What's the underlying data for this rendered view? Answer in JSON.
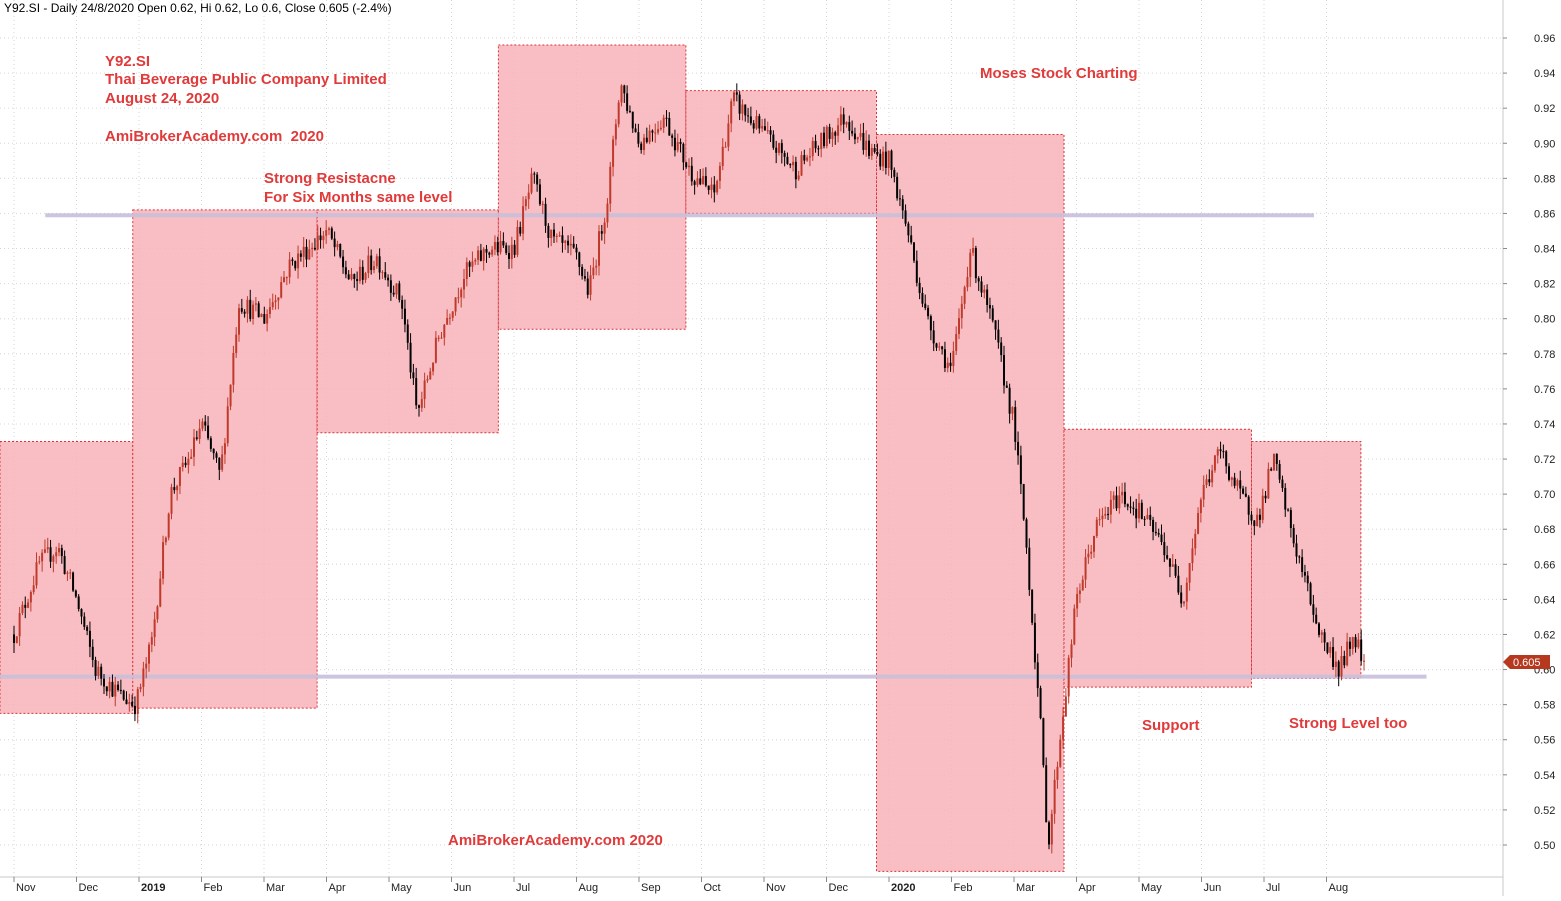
{
  "header": {
    "title": "Y92.SI - Daily 24/8/2020 Open 0.62, Hi 0.62, Lo 0.6, Close 0.605 (-2.4%)"
  },
  "annotations": {
    "ticker": "Y92.SI",
    "company": "Thai Beverage Public Company Limited",
    "date": "August 24, 2020",
    "site_top": "AmiBrokerAcademy.com  2020",
    "resistance_line1": "Strong Resistacne",
    "resistance_line2": "For Six Months same level",
    "moses": "Moses Stock Charting",
    "support": "Support",
    "strong_level": "Strong Level too",
    "site_bottom": "AmiBrokerAcademy.com 2020",
    "last_price": "0.605"
  },
  "colors": {
    "up_candle": "#c0392b",
    "down_candle": "#000000",
    "box_fill": "#f7b3b8",
    "box_border": "#d8343a",
    "level_line": "#c8bfd9",
    "annotation_text": "#e03a3a",
    "price_tag": "#b5381f"
  },
  "chart_data": {
    "type": "candlestick",
    "title": "Y92.SI - Daily 24/8/2020 Open 0.62, Hi 0.62, Lo 0.6, Close 0.605 (-2.4%)",
    "ylim": [
      0.48,
      0.97
    ],
    "y_ticks": [
      "0.96",
      "0.94",
      "0.92",
      "0.90",
      "0.88",
      "0.86",
      "0.84",
      "0.82",
      "0.80",
      "0.78",
      "0.76",
      "0.74",
      "0.72",
      "0.70",
      "0.68",
      "0.66",
      "0.64",
      "0.62",
      "0.60",
      "0.58",
      "0.56",
      "0.54",
      "0.52",
      "0.50"
    ],
    "x_ticks": [
      {
        "label": "Nov",
        "month": 0
      },
      {
        "label": "Dec",
        "month": 1
      },
      {
        "label": "2019",
        "month": 2
      },
      {
        "label": "Feb",
        "month": 3
      },
      {
        "label": "Mar",
        "month": 4
      },
      {
        "label": "Apr",
        "month": 5
      },
      {
        "label": "May",
        "month": 6
      },
      {
        "label": "Jun",
        "month": 7
      },
      {
        "label": "Jul",
        "month": 8
      },
      {
        "label": "Aug",
        "month": 9
      },
      {
        "label": "Sep",
        "month": 10
      },
      {
        "label": "Oct",
        "month": 11
      },
      {
        "label": "Nov",
        "month": 12
      },
      {
        "label": "Dec",
        "month": 13
      },
      {
        "label": "2020",
        "month": 14
      },
      {
        "label": "Feb",
        "month": 15
      },
      {
        "label": "Mar",
        "month": 16
      },
      {
        "label": "Apr",
        "month": 17
      },
      {
        "label": "May",
        "month": 18
      },
      {
        "label": "Jun",
        "month": 19
      },
      {
        "label": "Jul",
        "month": 20
      },
      {
        "label": "Aug",
        "month": 21
      }
    ],
    "grid": true,
    "price_path": [
      {
        "m": 0.0,
        "p": 0.62
      },
      {
        "m": 0.4,
        "p": 0.66
      },
      {
        "m": 0.7,
        "p": 0.67
      },
      {
        "m": 1.0,
        "p": 0.64
      },
      {
        "m": 1.3,
        "p": 0.6
      },
      {
        "m": 1.7,
        "p": 0.585
      },
      {
        "m": 1.95,
        "p": 0.58
      },
      {
        "m": 2.2,
        "p": 0.615
      },
      {
        "m": 2.5,
        "p": 0.7
      },
      {
        "m": 2.8,
        "p": 0.72
      },
      {
        "m": 3.0,
        "p": 0.74
      },
      {
        "m": 3.3,
        "p": 0.71
      },
      {
        "m": 3.6,
        "p": 0.81
      },
      {
        "m": 4.0,
        "p": 0.8
      },
      {
        "m": 4.4,
        "p": 0.83
      },
      {
        "m": 4.7,
        "p": 0.84
      },
      {
        "m": 5.0,
        "p": 0.85
      },
      {
        "m": 5.4,
        "p": 0.82
      },
      {
        "m": 5.8,
        "p": 0.835
      },
      {
        "m": 6.2,
        "p": 0.81
      },
      {
        "m": 6.45,
        "p": 0.745
      },
      {
        "m": 6.8,
        "p": 0.79
      },
      {
        "m": 7.2,
        "p": 0.825
      },
      {
        "m": 7.6,
        "p": 0.84
      },
      {
        "m": 8.0,
        "p": 0.84
      },
      {
        "m": 8.3,
        "p": 0.88
      },
      {
        "m": 8.6,
        "p": 0.845
      },
      {
        "m": 9.0,
        "p": 0.835
      },
      {
        "m": 9.2,
        "p": 0.815
      },
      {
        "m": 9.5,
        "p": 0.87
      },
      {
        "m": 9.7,
        "p": 0.935
      },
      {
        "m": 10.0,
        "p": 0.9
      },
      {
        "m": 10.4,
        "p": 0.915
      },
      {
        "m": 10.8,
        "p": 0.885
      },
      {
        "m": 11.2,
        "p": 0.87
      },
      {
        "m": 11.5,
        "p": 0.925
      },
      {
        "m": 12.0,
        "p": 0.905
      },
      {
        "m": 12.5,
        "p": 0.885
      },
      {
        "m": 12.9,
        "p": 0.9
      },
      {
        "m": 13.3,
        "p": 0.915
      },
      {
        "m": 13.7,
        "p": 0.895
      },
      {
        "m": 14.0,
        "p": 0.89
      },
      {
        "m": 14.3,
        "p": 0.85
      },
      {
        "m": 14.6,
        "p": 0.8
      },
      {
        "m": 15.0,
        "p": 0.77
      },
      {
        "m": 15.3,
        "p": 0.84
      },
      {
        "m": 15.7,
        "p": 0.79
      },
      {
        "m": 16.0,
        "p": 0.74
      },
      {
        "m": 16.2,
        "p": 0.67
      },
      {
        "m": 16.4,
        "p": 0.58
      },
      {
        "m": 16.55,
        "p": 0.5
      },
      {
        "m": 16.7,
        "p": 0.55
      },
      {
        "m": 17.0,
        "p": 0.64
      },
      {
        "m": 17.3,
        "p": 0.68
      },
      {
        "m": 17.7,
        "p": 0.7
      },
      {
        "m": 18.0,
        "p": 0.69
      },
      {
        "m": 18.4,
        "p": 0.67
      },
      {
        "m": 18.7,
        "p": 0.64
      },
      {
        "m": 19.0,
        "p": 0.7
      },
      {
        "m": 19.3,
        "p": 0.725
      },
      {
        "m": 19.6,
        "p": 0.7
      },
      {
        "m": 19.9,
        "p": 0.685
      },
      {
        "m": 20.15,
        "p": 0.72
      },
      {
        "m": 20.5,
        "p": 0.67
      },
      {
        "m": 20.9,
        "p": 0.62
      },
      {
        "m": 21.2,
        "p": 0.6
      },
      {
        "m": 21.45,
        "p": 0.62
      },
      {
        "m": 21.6,
        "p": 0.605
      }
    ],
    "boxes": [
      {
        "m0": -0.3,
        "m1": 1.9,
        "top": 0.73,
        "bottom": 0.575
      },
      {
        "m0": 1.9,
        "m1": 4.85,
        "top": 0.862,
        "bottom": 0.578
      },
      {
        "m0": 4.85,
        "m1": 7.75,
        "top": 0.862,
        "bottom": 0.735
      },
      {
        "m0": 7.75,
        "m1": 10.75,
        "top": 0.956,
        "bottom": 0.794
      },
      {
        "m0": 10.75,
        "m1": 13.8,
        "top": 0.93,
        "bottom": 0.86
      },
      {
        "m0": 13.8,
        "m1": 16.8,
        "top": 0.905,
        "bottom": 0.485
      },
      {
        "m0": 16.8,
        "m1": 19.8,
        "top": 0.737,
        "bottom": 0.59
      },
      {
        "m0": 19.8,
        "m1": 21.55,
        "top": 0.73,
        "bottom": 0.595
      }
    ],
    "levels": [
      {
        "price": 0.859,
        "m0": 0.5,
        "m1": 20.8
      },
      {
        "price": 0.596,
        "m0": -0.3,
        "m1": 22.6
      }
    ]
  }
}
